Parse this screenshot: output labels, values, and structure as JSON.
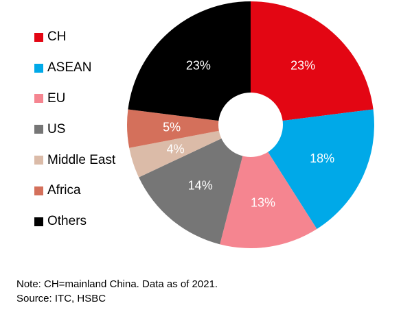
{
  "chart_data": {
    "type": "pie",
    "variant": "donut",
    "categories": [
      "CH",
      "ASEAN",
      "EU",
      "US",
      "Middle East",
      "Africa",
      "Others"
    ],
    "values": [
      23,
      18,
      13,
      14,
      4,
      5,
      23
    ],
    "value_labels": [
      "23%",
      "18%",
      "13%",
      "14%",
      "4%",
      "5%",
      "23%"
    ],
    "colors": [
      "#e30613",
      "#00a9e8",
      "#f58590",
      "#767676",
      "#dbbba8",
      "#d4705b",
      "#000000"
    ],
    "label_colors": [
      "#ffffff",
      "#ffffff",
      "#ffffff",
      "#ffffff",
      "#ffffff",
      "#ffffff",
      "#ffffff"
    ],
    "start": "top",
    "direction": "clockwise",
    "legend_position": "left"
  },
  "legend": {
    "items": [
      {
        "label": "CH",
        "color": "#e30613"
      },
      {
        "label": "ASEAN",
        "color": "#00a9e8"
      },
      {
        "label": "EU",
        "color": "#f58590"
      },
      {
        "label": "US",
        "color": "#767676"
      },
      {
        "label": "Middle East",
        "color": "#dbbba8"
      },
      {
        "label": "Africa",
        "color": "#d4705b"
      },
      {
        "label": "Others",
        "color": "#000000"
      }
    ]
  },
  "footer": {
    "note": "Note: CH=mainland China. Data as of 2021.",
    "source": "Source: ITC, HSBC"
  }
}
